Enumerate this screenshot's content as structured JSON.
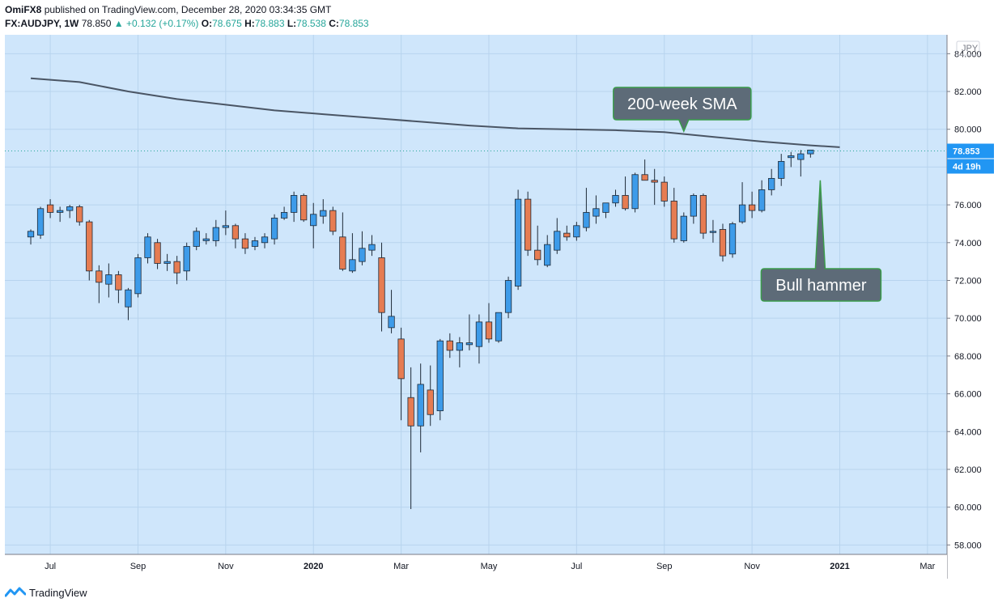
{
  "header": {
    "author": "OmiFX8",
    "published_text": "published on TradingView.com, December 28, 2020 03:34:35 GMT",
    "symbol": "FX:AUDJPY, 1W",
    "last": "78.850",
    "change": "+0.132 (+0.17%)",
    "o_label": "O:",
    "o_val": "78.675",
    "h_label": "H:",
    "h_val": "78.883",
    "l_label": "L:",
    "l_val": "78.538",
    "c_label": "C:",
    "c_val": "78.853"
  },
  "footer": {
    "brand": "TradingView"
  },
  "colors": {
    "background": "#cfe6fb",
    "grid": "#b8d4ee",
    "bull": "#3d9be9",
    "bear": "#e67c52",
    "outline": "#1e2a38",
    "sma": "#4a5564",
    "callout_bg": "#5d6b78",
    "callout_border": "#3a9c4a",
    "price_tag": "#2196f3"
  },
  "chart_data": {
    "type": "candlestick",
    "title": "",
    "currency_label": "JPY",
    "ylim": [
      57.5,
      85
    ],
    "y_ticks": [
      58,
      60,
      62,
      64,
      66,
      68,
      70,
      72,
      74,
      76,
      78,
      80,
      82,
      84
    ],
    "y_tick_labels": [
      "58.000",
      "60.000",
      "62.000",
      "64.000",
      "66.000",
      "68.000",
      "70.000",
      "72.000",
      "74.000",
      "76.000",
      "78.000",
      "80.000",
      "82.000",
      "84.000"
    ],
    "x_ticks": [
      {
        "label": "Jul",
        "bar": 2
      },
      {
        "label": "Sep",
        "bar": 11
      },
      {
        "label": "Nov",
        "bar": 20
      },
      {
        "label": "2020",
        "bar": 29
      },
      {
        "label": "Mar",
        "bar": 38
      },
      {
        "label": "May",
        "bar": 47
      },
      {
        "label": "Jul",
        "bar": 56
      },
      {
        "label": "Sep",
        "bar": 65
      },
      {
        "label": "Nov",
        "bar": 74
      },
      {
        "label": "2021",
        "bar": 83
      },
      {
        "label": "Mar",
        "bar": 92
      }
    ],
    "bar_count_span": 96,
    "series": [
      {
        "name": "AUDJPY weekly",
        "ohlc": [
          [
            74.3,
            74.7,
            73.9,
            74.6
          ],
          [
            74.4,
            75.9,
            74.2,
            75.8
          ],
          [
            76.0,
            76.3,
            75.3,
            75.6
          ],
          [
            75.6,
            75.9,
            75.1,
            75.7
          ],
          [
            75.7,
            76.0,
            75.3,
            75.9
          ],
          [
            75.9,
            76.0,
            74.9,
            75.1
          ],
          [
            75.1,
            75.2,
            72.0,
            72.5
          ],
          [
            72.5,
            72.8,
            70.8,
            71.9
          ],
          [
            71.8,
            72.9,
            71.1,
            72.3
          ],
          [
            72.3,
            72.5,
            70.8,
            71.5
          ],
          [
            70.6,
            71.6,
            69.9,
            71.5
          ],
          [
            71.3,
            73.4,
            71.1,
            73.2
          ],
          [
            73.2,
            74.5,
            72.9,
            74.3
          ],
          [
            74.0,
            74.2,
            72.6,
            72.9
          ],
          [
            72.9,
            73.4,
            72.5,
            73.0
          ],
          [
            73.0,
            73.3,
            71.8,
            72.4
          ],
          [
            72.5,
            74.0,
            72.0,
            73.8
          ],
          [
            73.8,
            74.8,
            73.6,
            74.6
          ],
          [
            74.1,
            74.5,
            73.9,
            74.2
          ],
          [
            74.1,
            75.2,
            73.8,
            74.8
          ],
          [
            74.8,
            75.7,
            74.4,
            74.9
          ],
          [
            74.9,
            75.0,
            73.7,
            74.2
          ],
          [
            74.2,
            74.5,
            73.4,
            73.7
          ],
          [
            73.8,
            74.3,
            73.6,
            74.1
          ],
          [
            74.0,
            74.5,
            73.7,
            74.3
          ],
          [
            74.2,
            75.5,
            73.9,
            75.3
          ],
          [
            75.3,
            75.9,
            75.2,
            75.6
          ],
          [
            75.6,
            76.7,
            75.1,
            76.5
          ],
          [
            76.5,
            76.6,
            75.1,
            75.2
          ],
          [
            74.9,
            76.1,
            73.7,
            75.5
          ],
          [
            75.4,
            76.3,
            75.0,
            75.7
          ],
          [
            75.7,
            75.9,
            74.4,
            74.6
          ],
          [
            74.3,
            75.6,
            72.5,
            72.6
          ],
          [
            72.5,
            74.5,
            72.4,
            73.1
          ],
          [
            73.0,
            74.6,
            72.8,
            73.7
          ],
          [
            73.6,
            74.4,
            73.3,
            73.9
          ],
          [
            73.2,
            74.0,
            69.3,
            70.3
          ],
          [
            69.5,
            71.5,
            69.2,
            70.1
          ],
          [
            68.9,
            69.5,
            64.6,
            66.8
          ],
          [
            65.8,
            67.4,
            59.9,
            64.3
          ],
          [
            64.3,
            67.6,
            62.9,
            66.5
          ],
          [
            66.2,
            67.5,
            64.3,
            64.9
          ],
          [
            65.1,
            68.9,
            64.6,
            68.8
          ],
          [
            68.8,
            69.2,
            67.9,
            68.3
          ],
          [
            68.3,
            69.0,
            67.4,
            68.7
          ],
          [
            68.6,
            70.2,
            68.3,
            68.7
          ],
          [
            68.5,
            70.2,
            67.6,
            69.8
          ],
          [
            69.8,
            70.8,
            68.7,
            68.9
          ],
          [
            68.8,
            70.3,
            68.7,
            70.3
          ],
          [
            70.3,
            72.2,
            70.0,
            72.0
          ],
          [
            71.7,
            76.8,
            71.5,
            76.3
          ],
          [
            76.3,
            76.7,
            73.3,
            73.6
          ],
          [
            73.6,
            74.9,
            72.8,
            73.1
          ],
          [
            72.8,
            74.4,
            72.7,
            73.9
          ],
          [
            73.6,
            75.3,
            73.4,
            74.6
          ],
          [
            74.5,
            74.9,
            74.1,
            74.3
          ],
          [
            74.3,
            75.1,
            74.1,
            74.9
          ],
          [
            74.8,
            76.9,
            74.6,
            75.6
          ],
          [
            75.4,
            76.5,
            75.0,
            75.8
          ],
          [
            75.6,
            76.1,
            75.3,
            76.1
          ],
          [
            76.1,
            76.8,
            75.9,
            76.5
          ],
          [
            76.5,
            77.5,
            75.7,
            75.8
          ],
          [
            75.8,
            77.7,
            75.6,
            77.6
          ],
          [
            77.6,
            78.4,
            77.3,
            77.3
          ],
          [
            77.3,
            77.9,
            76.0,
            77.2
          ],
          [
            77.2,
            77.5,
            75.9,
            76.2
          ],
          [
            76.2,
            76.9,
            74.0,
            74.2
          ],
          [
            74.1,
            75.6,
            74.0,
            75.4
          ],
          [
            75.4,
            76.6,
            75.0,
            76.5
          ],
          [
            76.5,
            76.6,
            74.2,
            74.5
          ],
          [
            74.6,
            75.2,
            74.0,
            74.6
          ],
          [
            74.7,
            75.0,
            73.0,
            73.3
          ],
          [
            73.4,
            75.1,
            73.2,
            75.0
          ],
          [
            75.1,
            77.2,
            75.0,
            76.0
          ],
          [
            76.0,
            76.7,
            75.3,
            75.7
          ],
          [
            75.7,
            77.3,
            75.6,
            76.8
          ],
          [
            76.8,
            77.9,
            76.5,
            77.4
          ],
          [
            77.4,
            78.7,
            77.0,
            78.3
          ],
          [
            78.5,
            78.8,
            78.0,
            78.6
          ],
          [
            78.4,
            78.9,
            77.5,
            78.7
          ],
          [
            78.7,
            78.9,
            78.5,
            78.9
          ]
        ]
      },
      {
        "name": "200-week SMA",
        "points": [
          [
            0,
            82.7
          ],
          [
            5,
            82.5
          ],
          [
            10,
            82.0
          ],
          [
            15,
            81.6
          ],
          [
            20,
            81.3
          ],
          [
            25,
            81.0
          ],
          [
            30,
            80.8
          ],
          [
            35,
            80.6
          ],
          [
            40,
            80.4
          ],
          [
            45,
            80.2
          ],
          [
            50,
            80.05
          ],
          [
            55,
            80.0
          ],
          [
            60,
            79.95
          ],
          [
            65,
            79.85
          ],
          [
            70,
            79.6
          ],
          [
            75,
            79.35
          ],
          [
            80,
            79.15
          ],
          [
            83,
            79.05
          ]
        ]
      }
    ],
    "last_price_label": "78.853",
    "last_price_value": 78.853,
    "countdown_label": "4d 19h",
    "annotations": [
      {
        "text": "200-week SMA",
        "target_bar": 67,
        "target_value": 79.9
      },
      {
        "text": "Bull hammer",
        "target_bar": 81,
        "target_value": 77.3
      }
    ]
  }
}
